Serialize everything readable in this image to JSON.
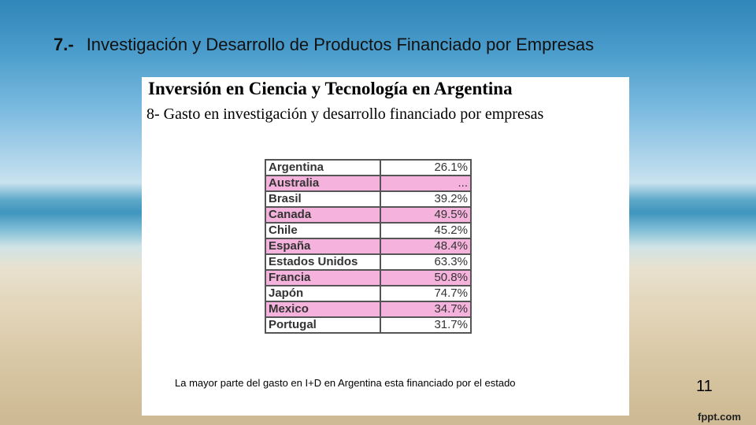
{
  "slide": {
    "number_label": "7.-",
    "title": "Investigación y Desarrollo de Productos Financiado por  Empresas",
    "page_number": "11",
    "brand": "fppt.com"
  },
  "panel": {
    "title": "Inversión en Ciencia y Tecnología en Argentina",
    "subtitle": "8- Gasto en investigación y desarrollo financiado por empresas",
    "footnote": "La mayor parte del gasto en I+D en Argentina esta financiado por el estado",
    "row_colors": {
      "pink": "#f5b2dc",
      "white": "#ffffff"
    },
    "rows": [
      {
        "country": "Argentina",
        "value": "26.1%"
      },
      {
        "country": "Australia",
        "value": "..."
      },
      {
        "country": "Brasil",
        "value": "39.2%"
      },
      {
        "country": "Canada",
        "value": "49.5%"
      },
      {
        "country": "Chile",
        "value": "45.2%"
      },
      {
        "country": "España",
        "value": "48.4%"
      },
      {
        "country": "Estados Unidos",
        "value": "63.3%"
      },
      {
        "country": "Francia",
        "value": "50.8%"
      },
      {
        "country": "Japón",
        "value": "74.7%"
      },
      {
        "country": "Mexico",
        "value": "34.7%"
      },
      {
        "country": "Portugal",
        "value": "31.7%"
      }
    ]
  }
}
